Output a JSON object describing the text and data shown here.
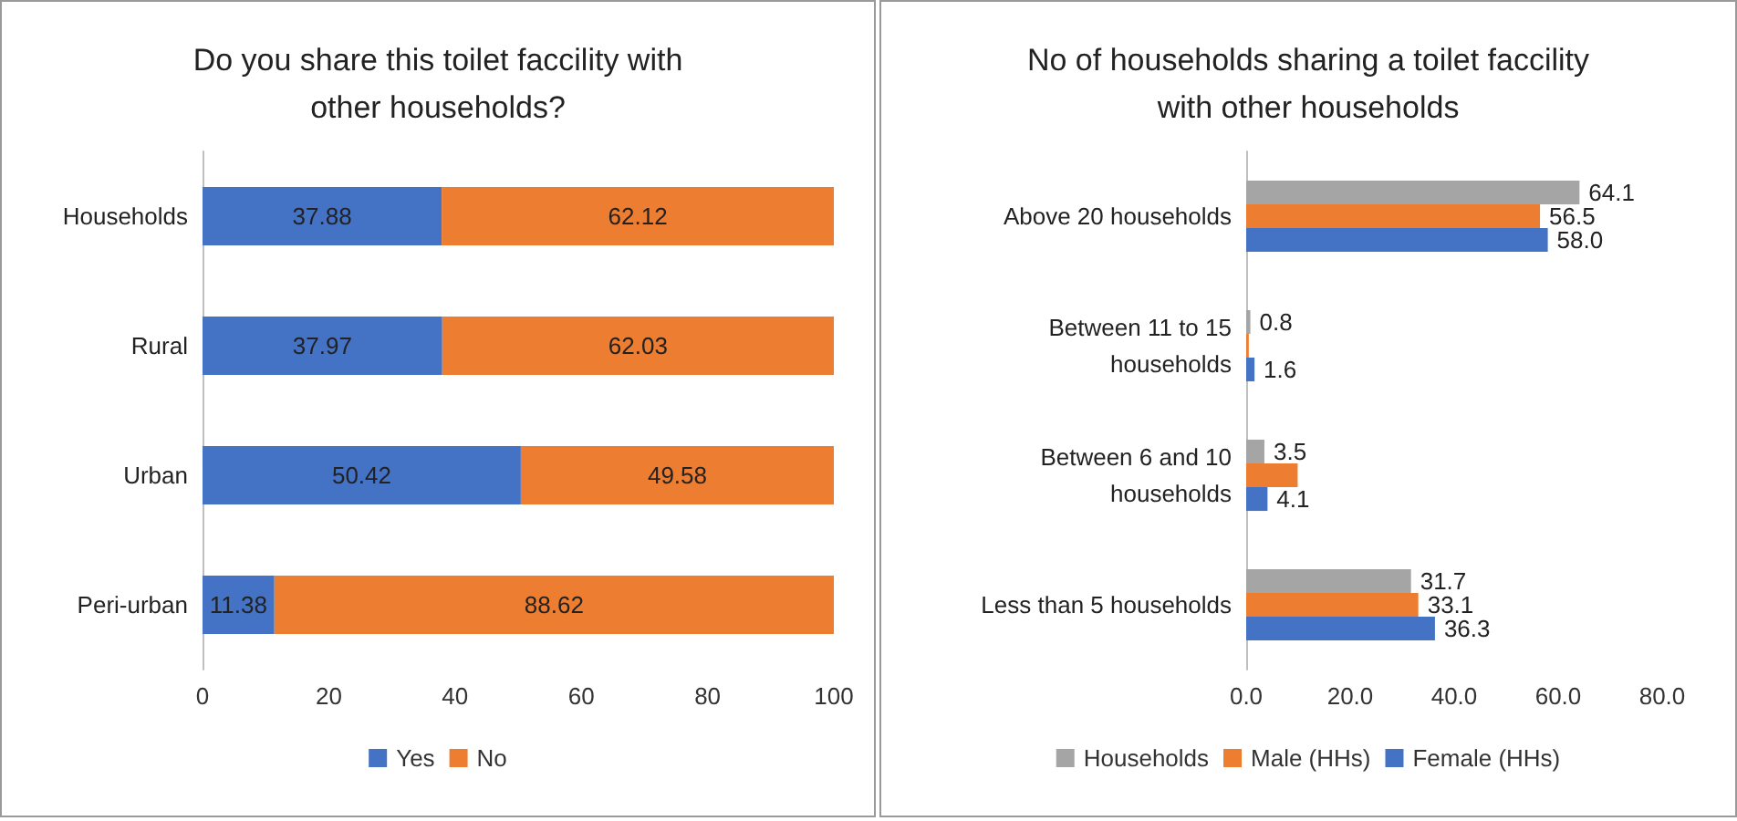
{
  "chart_data": [
    {
      "type": "bar",
      "title": "Do you share this toilet faccility with other households?",
      "orientation": "horizontal",
      "stacked": true,
      "categories": [
        "Households",
        "Rural",
        "Urban",
        "Peri-urban"
      ],
      "series": [
        {
          "name": "Yes",
          "color": "#4472c4",
          "values": [
            37.88,
            37.97,
            50.42,
            11.38
          ]
        },
        {
          "name": "No",
          "color": "#ed7d31",
          "values": [
            62.12,
            62.03,
            49.58,
            88.62
          ]
        }
      ],
      "xlim": [
        0,
        100
      ],
      "xticks": [
        0,
        20,
        40,
        60,
        80,
        100
      ],
      "data_labels": true,
      "legend": "bottom",
      "grid": false
    },
    {
      "type": "bar",
      "title": "No of households sharing a toilet faccility with other households",
      "orientation": "horizontal",
      "categories": [
        "Above 20 households",
        "Between 11 to 15 households",
        "Between 6 and 10 households",
        "Less than 5 households"
      ],
      "series": [
        {
          "name": "Households",
          "color": "#a5a5a5",
          "values": [
            64.1,
            0.8,
            3.5,
            31.7
          ],
          "value_labels": [
            "64.1",
            "0.8",
            "3.5",
            "31.7"
          ]
        },
        {
          "name": "Male (HHs)",
          "color": "#ed7d31",
          "values": [
            56.5,
            0.5,
            9.9,
            33.1
          ],
          "value_labels": [
            "56.5",
            null,
            null,
            "33.1"
          ]
        },
        {
          "name": "Female (HHs)",
          "color": "#4472c4",
          "values": [
            58.0,
            1.6,
            4.1,
            36.3
          ],
          "value_labels": [
            "58.0",
            "1.6",
            "4.1",
            "36.3"
          ]
        }
      ],
      "xlim": [
        0,
        80
      ],
      "xticks": [
        {
          "value": 0,
          "label": "0.0"
        },
        {
          "value": 20,
          "label": "20.0"
        },
        {
          "value": 40,
          "label": "40.0"
        },
        {
          "value": 60,
          "label": "60.0"
        },
        {
          "value": 80,
          "label": "80.0"
        }
      ],
      "legend": "bottom",
      "grid": false
    }
  ]
}
